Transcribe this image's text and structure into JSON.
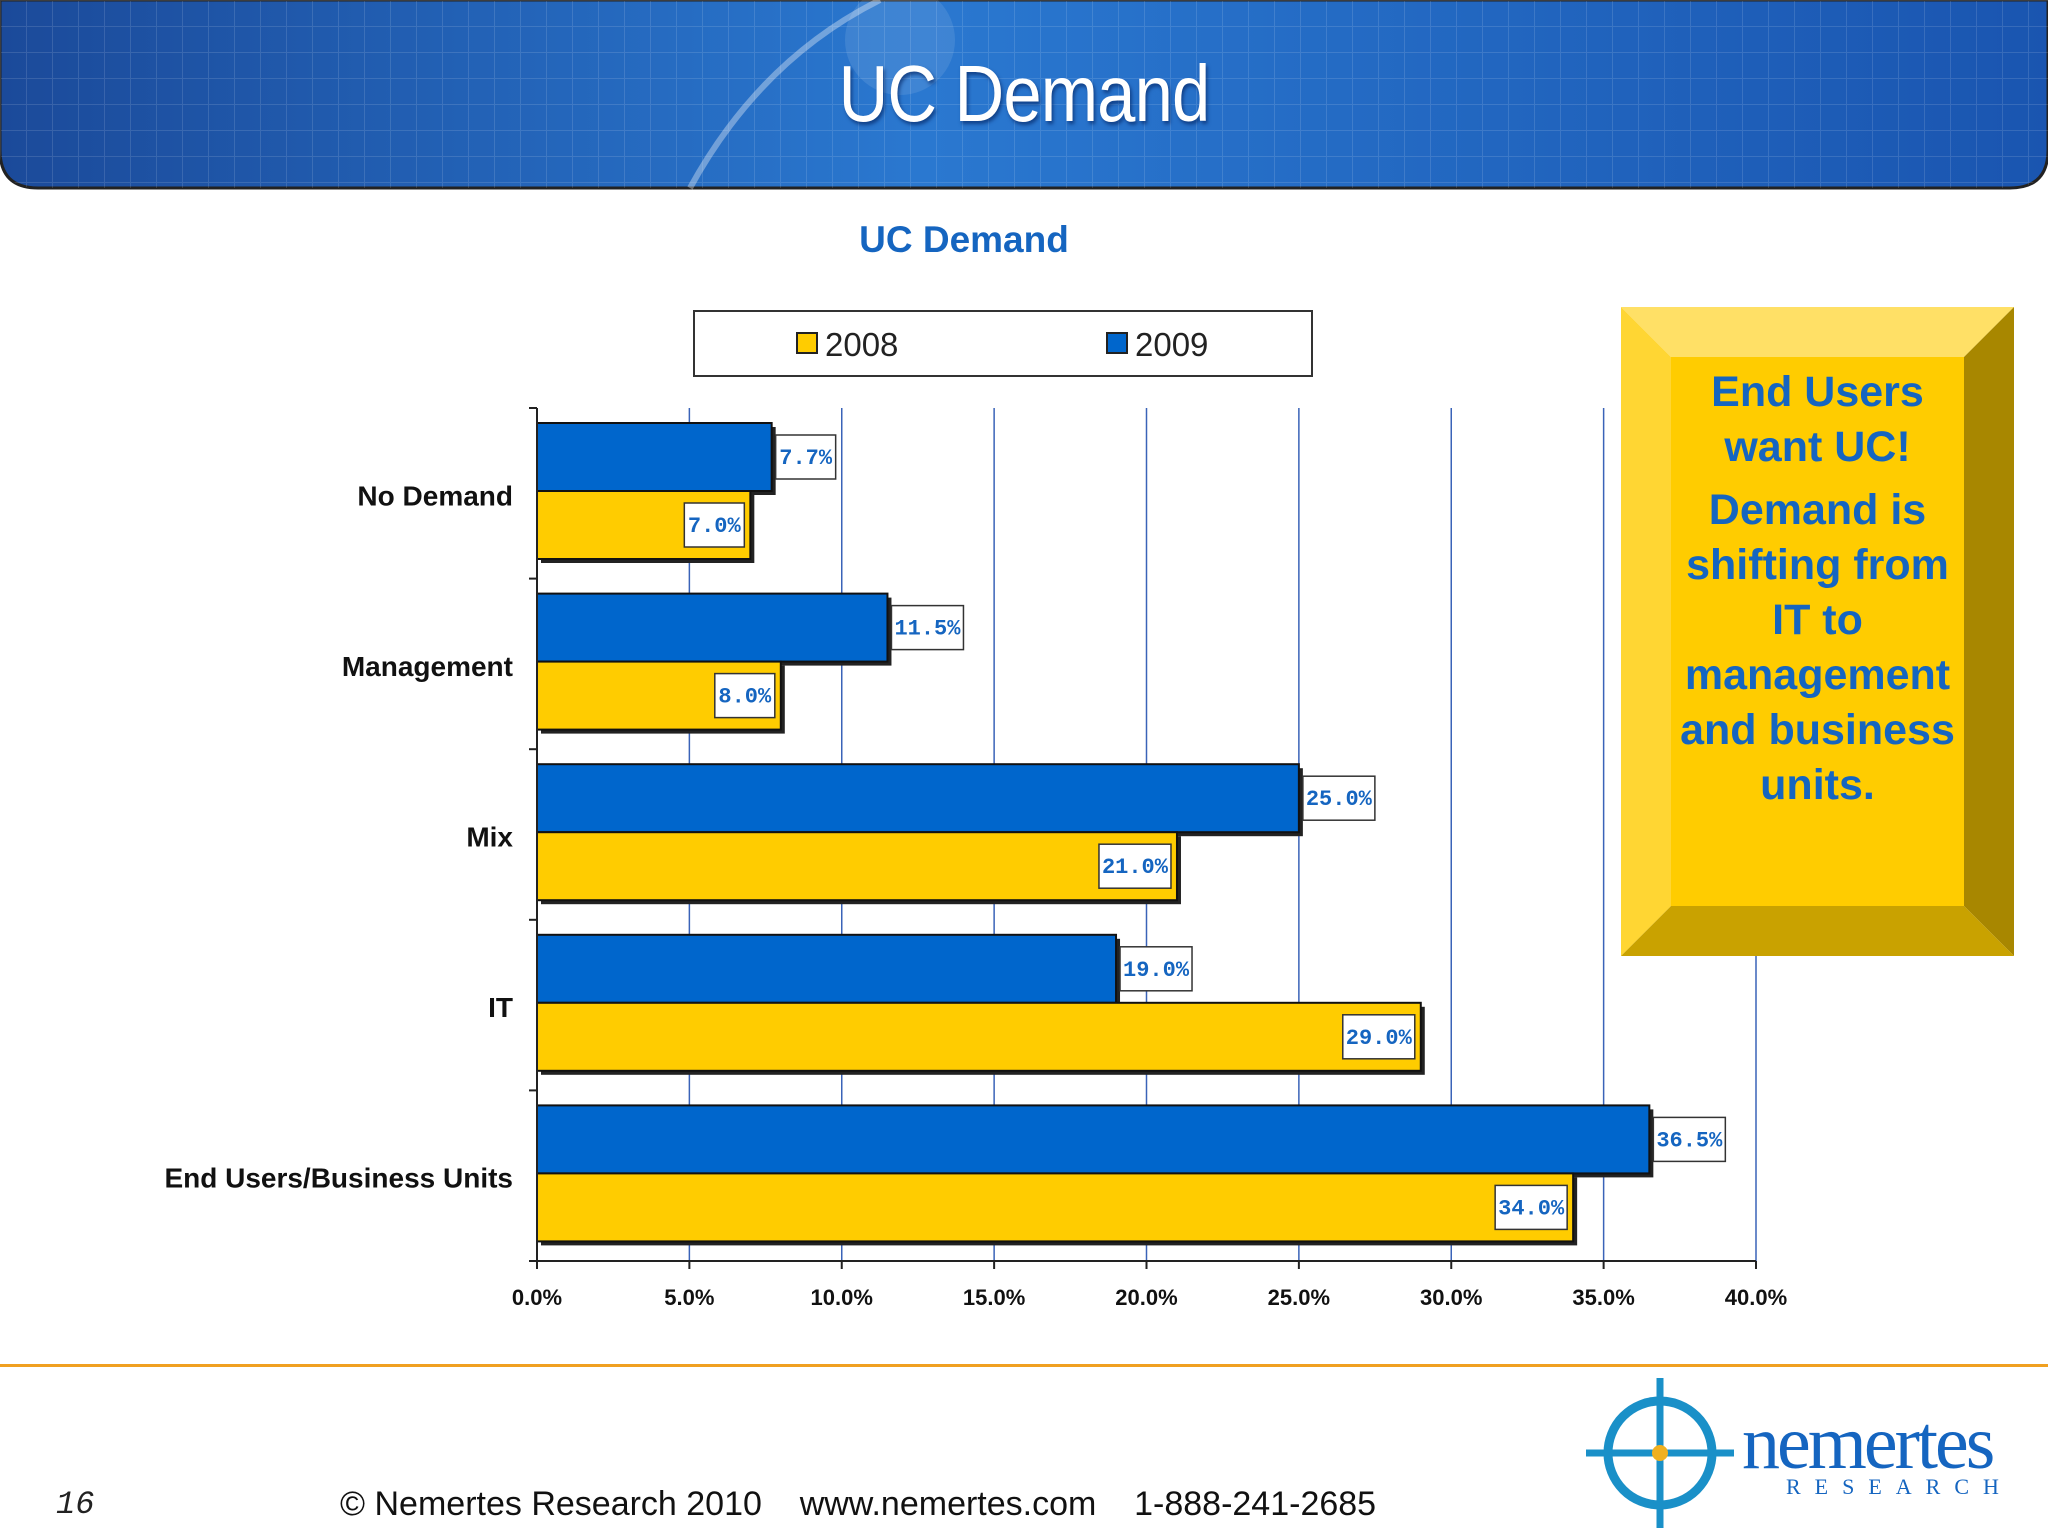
{
  "header": {
    "title": "UC Demand"
  },
  "callout": {
    "line1": "End Users want UC!",
    "line2": "Demand is shifting from IT to management and business units."
  },
  "footer": {
    "page_number": "16",
    "text": "© Nemertes Research 2010    www.nemertes.com    1-888-241-2685"
  },
  "logo": {
    "name": "nemertes",
    "sub": "RESEARCH"
  },
  "colors": {
    "y2008": "#FFCC00",
    "y2009": "#0066CC",
    "accent": "#1565c0"
  },
  "chart_data": {
    "type": "bar",
    "orientation": "horizontal",
    "title": "UC Demand",
    "categories": [
      "No Demand",
      "Management",
      "Mix",
      "IT",
      "End Users/Business Units"
    ],
    "series": [
      {
        "name": "2009",
        "values": [
          7.7,
          11.5,
          25.0,
          19.0,
          36.5
        ],
        "labels": [
          "7.7%",
          "11.5%",
          "25.0%",
          "19.0%",
          "36.5%"
        ]
      },
      {
        "name": "2008",
        "values": [
          7.0,
          8.0,
          21.0,
          29.0,
          34.0
        ],
        "labels": [
          "7.0%",
          "8.0%",
          "21.0%",
          "29.0%",
          "34.0%"
        ]
      }
    ],
    "xlim": [
      0,
      40
    ],
    "ticks": [
      "0.0%",
      "5.0%",
      "10.0%",
      "15.0%",
      "20.0%",
      "25.0%",
      "30.0%",
      "35.0%",
      "40.0%"
    ],
    "legend": [
      "2008",
      "2009"
    ],
    "legend_position": "top",
    "grid": true
  }
}
